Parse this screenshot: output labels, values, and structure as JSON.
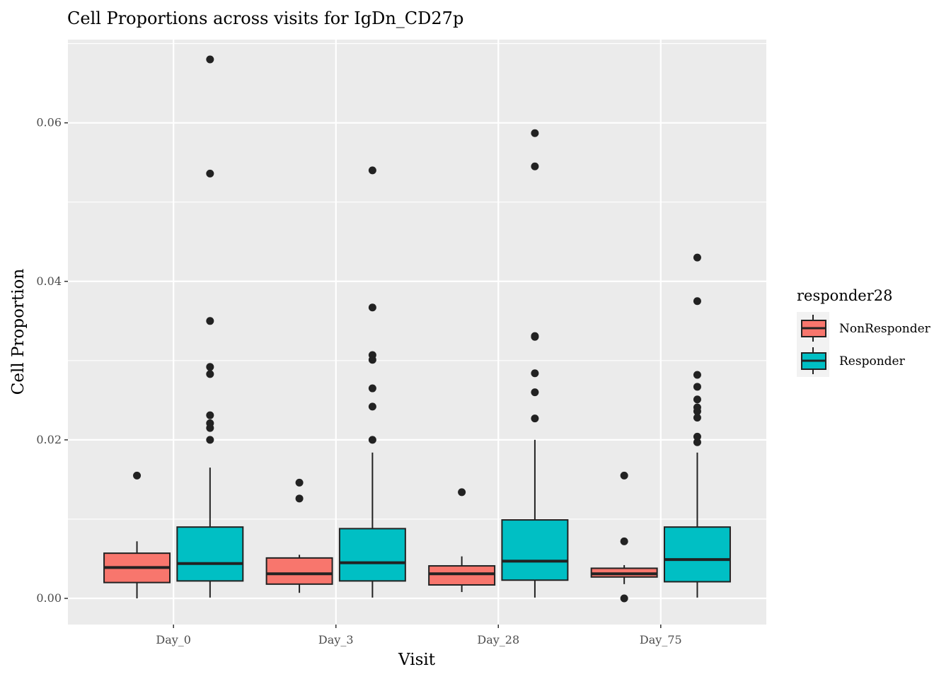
{
  "chart_data": {
    "type": "boxplot",
    "title": "Cell Proportions across visits for IgDn_CD27p",
    "xlabel": "Visit",
    "ylabel": "Cell Proportion",
    "categories": [
      "Day_0",
      "Day_3",
      "Day_28",
      "Day_75"
    ],
    "ylim": [
      -0.0033,
      0.0705
    ],
    "yticks": [
      0.0,
      0.02,
      0.04,
      0.06
    ],
    "ytick_labels": [
      "0.00",
      "0.02",
      "0.04",
      "0.06"
    ],
    "grid": true,
    "legend": {
      "title": "responder28",
      "position": "right",
      "entries": [
        "NonResponder",
        "Responder"
      ]
    },
    "series": [
      {
        "name": "NonResponder",
        "color": "#F8766D",
        "boxes": [
          {
            "category": "Day_0",
            "whisker_low": 0.0,
            "q1": 0.002,
            "median": 0.0039,
            "q3": 0.0057,
            "whisker_high": 0.0072,
            "outliers": [
              0.0155
            ]
          },
          {
            "category": "Day_3",
            "whisker_low": 0.0007,
            "q1": 0.0018,
            "median": 0.0031,
            "q3": 0.0051,
            "whisker_high": 0.0055,
            "outliers": [
              0.0146,
              0.0126
            ]
          },
          {
            "category": "Day_28",
            "whisker_low": 0.0008,
            "q1": 0.0017,
            "median": 0.0031,
            "q3": 0.0041,
            "whisker_high": 0.0053,
            "outliers": [
              0.0134
            ]
          },
          {
            "category": "Day_75",
            "whisker_low": 0.0018,
            "q1": 0.0027,
            "median": 0.0031,
            "q3": 0.0038,
            "whisker_high": 0.0042,
            "outliers": [
              0.0155,
              0.0072,
              0.0
            ]
          }
        ]
      },
      {
        "name": "Responder",
        "color": "#00BFC4",
        "boxes": [
          {
            "category": "Day_0",
            "whisker_low": 0.0001,
            "q1": 0.0022,
            "median": 0.0044,
            "q3": 0.009,
            "whisker_high": 0.0165,
            "outliers": [
              0.068,
              0.0536,
              0.035,
              0.0292,
              0.0283,
              0.0231,
              0.0221,
              0.0215,
              0.02
            ]
          },
          {
            "category": "Day_3",
            "whisker_low": 0.0001,
            "q1": 0.0022,
            "median": 0.0045,
            "q3": 0.0088,
            "whisker_high": 0.0184,
            "outliers": [
              0.054,
              0.0367,
              0.0307,
              0.0301,
              0.0265,
              0.0242,
              0.02
            ]
          },
          {
            "category": "Day_28",
            "whisker_low": 0.0001,
            "q1": 0.0023,
            "median": 0.0047,
            "q3": 0.0099,
            "whisker_high": 0.02,
            "outliers": [
              0.0587,
              0.0545,
              0.0331,
              0.033,
              0.0284,
              0.026,
              0.0227
            ]
          },
          {
            "category": "Day_75",
            "whisker_low": 0.0001,
            "q1": 0.0021,
            "median": 0.0049,
            "q3": 0.009,
            "whisker_high": 0.0184,
            "outliers": [
              0.043,
              0.0375,
              0.0282,
              0.0267,
              0.0251,
              0.0241,
              0.0236,
              0.0228,
              0.0204,
              0.0197
            ]
          }
        ]
      }
    ]
  }
}
